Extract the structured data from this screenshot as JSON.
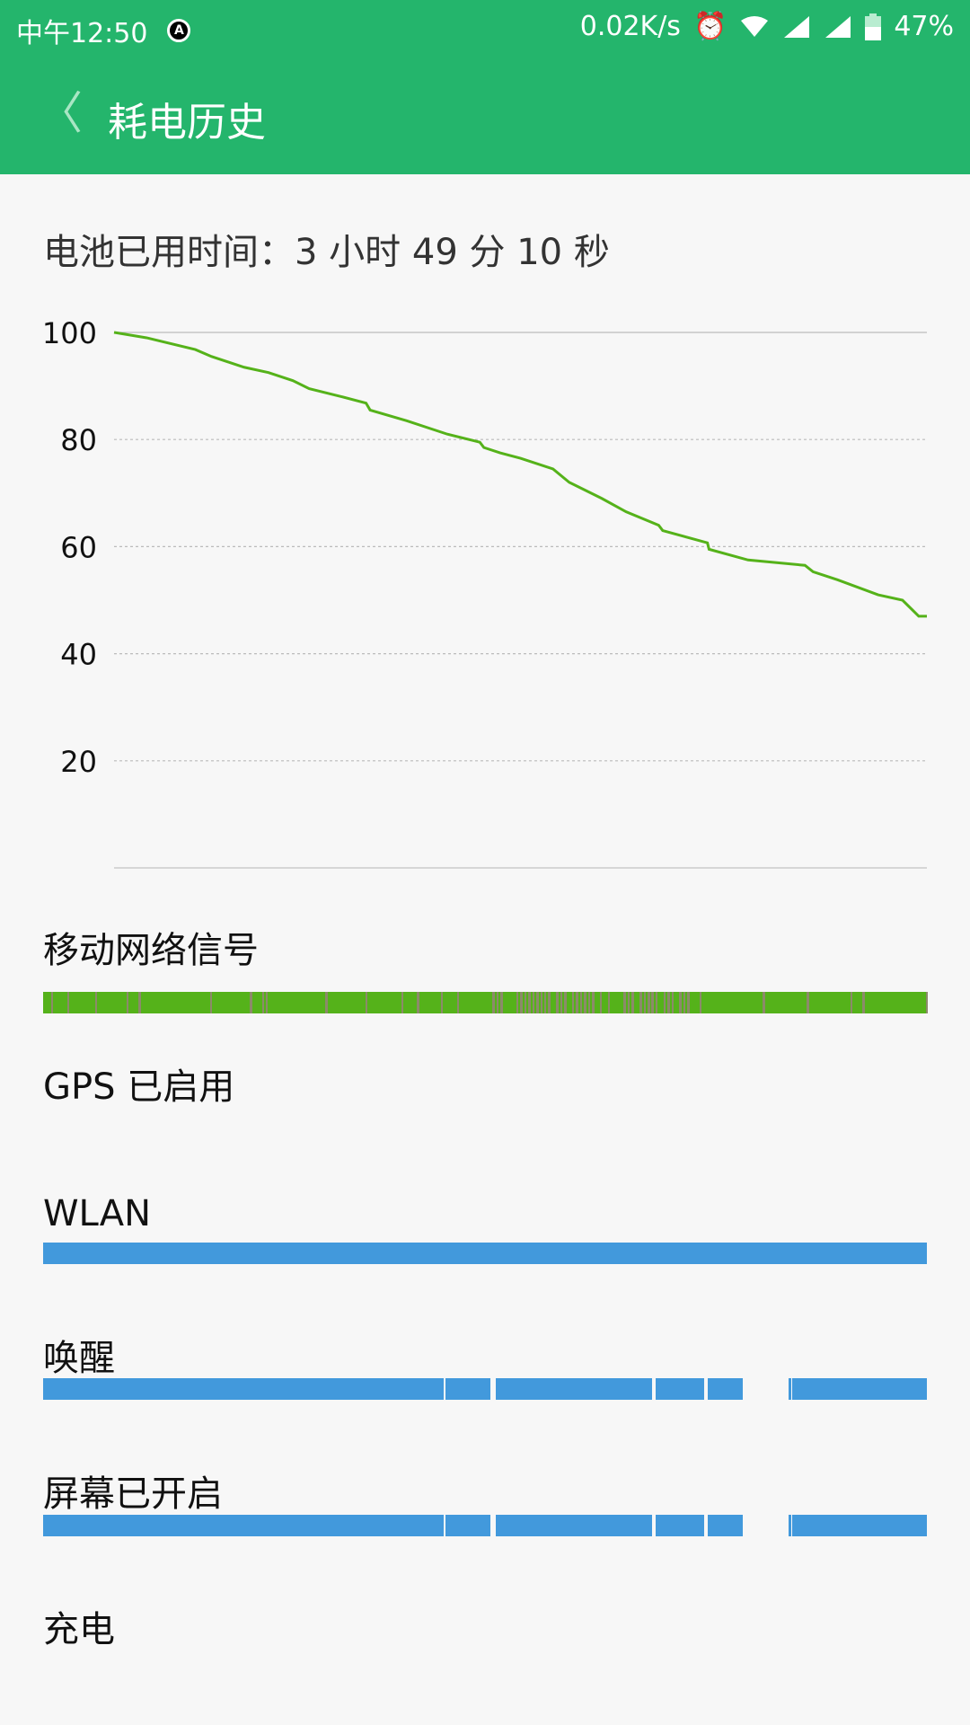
{
  "status_bar": {
    "time": "中午12:50",
    "auto_icon": "A",
    "net_speed": "0.02K/s",
    "icons": [
      "alarm-icon",
      "wifi-icon",
      "signal-icon",
      "signal-icon",
      "battery-icon"
    ],
    "battery": "47%"
  },
  "app_bar": {
    "title": "耗电历史",
    "back_icon": "chevron-left-icon"
  },
  "usage": {
    "text": "电池已用时间：3 小时 49 分 10 秒"
  },
  "colors": {
    "brand": "#24b56c",
    "line": "#55b21a",
    "signal_good": "#55b21a",
    "signal_poor": "#8c8a6a",
    "bar": "#4299dc"
  },
  "chart_data": {
    "type": "line",
    "title": "",
    "xlabel": "",
    "ylabel": "",
    "ylim": [
      0,
      100
    ],
    "yticks": [
      "100",
      "80",
      "60",
      "40",
      "20"
    ],
    "ytick_values": [
      100,
      80,
      60,
      40,
      20
    ],
    "grid": true,
    "x_unit": "percent of elapsed time",
    "x": [
      0,
      4,
      10,
      12,
      14,
      16,
      19,
      22,
      24,
      28,
      31,
      31.5,
      36,
      41,
      45,
      45.5,
      47.5,
      50,
      54,
      56,
      60,
      63,
      67,
      67.5,
      73,
      73.2,
      78,
      85,
      86,
      89,
      94,
      97,
      99,
      100
    ],
    "y": [
      100,
      99,
      96.8,
      95.5,
      94.5,
      93.5,
      92.5,
      91,
      89.5,
      88,
      86.8,
      85.5,
      83.5,
      81,
      79.5,
      78.5,
      77.5,
      76.5,
      74.5,
      72,
      69,
      66.5,
      64,
      63,
      60.7,
      59.5,
      57.5,
      56.5,
      55.3,
      53.8,
      51,
      50,
      47,
      47
    ]
  },
  "rows": [
    {
      "label": "移动网络信号"
    },
    {
      "label": "GPS 已启用"
    },
    {
      "label": "WLAN",
      "segments": [
        [
          0,
          100
        ]
      ]
    },
    {
      "label": "唤醒",
      "segments": [
        [
          0,
          45.3
        ],
        [
          45.5,
          50.6
        ],
        [
          51.2,
          68.9
        ],
        [
          69.3,
          74.8
        ],
        [
          75.2,
          79.2
        ],
        [
          84.4,
          84.7
        ],
        [
          84.8,
          100
        ]
      ]
    },
    {
      "label": "屏幕已开启",
      "segments": [
        [
          0,
          45.3
        ],
        [
          45.5,
          50.6
        ],
        [
          51.2,
          68.9
        ],
        [
          69.3,
          74.8
        ],
        [
          75.2,
          79.2
        ],
        [
          84.4,
          84.7
        ],
        [
          84.8,
          100
        ]
      ]
    },
    {
      "label": "充电"
    }
  ]
}
